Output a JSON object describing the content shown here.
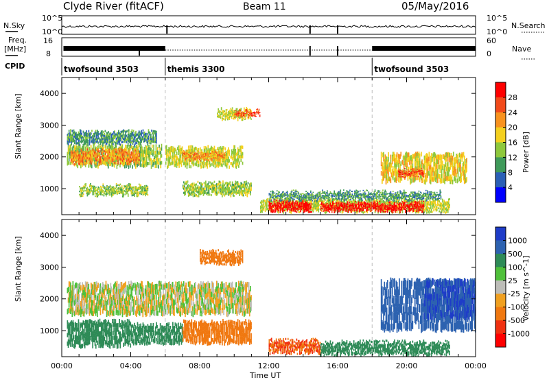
{
  "header": {
    "title": "Clyde River (fitACF)",
    "beam": "Beam 11",
    "date": "05/May/2016"
  },
  "noise_panel": {
    "left_label": "N.Sky",
    "left_ticks": [
      "10^5",
      "10^0"
    ],
    "right_label": "N.Search",
    "right_ticks": [
      "10^5",
      "10^0"
    ]
  },
  "freq_panel": {
    "left_label_1": "Freq.",
    "left_label_2": "[MHz]",
    "left_ticks": [
      "16",
      "8"
    ],
    "right_label": "Nave",
    "right_ticks": [
      "60",
      "0"
    ]
  },
  "cpid": {
    "label": "CPID",
    "segments": [
      {
        "name": "twofsound 3503",
        "start_hour": 0,
        "end_hour": 6
      },
      {
        "name": "themis 3300",
        "start_hour": 6,
        "end_hour": 18
      },
      {
        "name": "twofsound 3503",
        "start_hour": 18,
        "end_hour": 24
      }
    ]
  },
  "axes": {
    "y_label": "Slant Range [km]",
    "y_ticks": [
      "4000",
      "3000",
      "2000",
      "1000"
    ],
    "x_label": "Time UT",
    "x_ticks": [
      "00:00",
      "04:00",
      "08:00",
      "12:00",
      "16:00",
      "20:00",
      "00:00"
    ]
  },
  "power_scale": {
    "label": "Power [dB]",
    "ticks": [
      "28",
      "24",
      "20",
      "16",
      "12",
      "8",
      "4"
    ],
    "colors": [
      "#ff0000",
      "#f24a1a",
      "#f8921e",
      "#f4d01e",
      "#8ec83c",
      "#3f9a5a",
      "#2a5fb6",
      "#0000ff"
    ]
  },
  "velocity_scale": {
    "label": "Velocity [m s^-1]",
    "ticks": [
      "1000",
      "500",
      "100",
      "25",
      "-25",
      "-100",
      "-500",
      "-1000"
    ],
    "colors": [
      "#1e3cc8",
      "#2d62b0",
      "#2e8b57",
      "#4fc03a",
      "#bdbdb8",
      "#f0a020",
      "#f07810",
      "#f03010",
      "#ff0000"
    ]
  },
  "chart_data": {
    "type": "heatmap",
    "x_range_hours": [
      0,
      24
    ],
    "y_range_km": [
      180,
      4500
    ],
    "power_regions": [
      {
        "x0": 0.3,
        "x1": 5.8,
        "y0": 1700,
        "y1": 2350,
        "dB": 12
      },
      {
        "x0": 0.5,
        "x1": 4.5,
        "y0": 1800,
        "y1": 2200,
        "dB": 20
      },
      {
        "x0": 0.3,
        "x1": 5.5,
        "y0": 2400,
        "y1": 2800,
        "dB": 8
      },
      {
        "x0": 1,
        "x1": 5,
        "y0": 800,
        "y1": 1100,
        "dB": 12
      },
      {
        "x0": 6,
        "x1": 10.5,
        "y0": 1700,
        "y1": 2300,
        "dB": 14
      },
      {
        "x0": 7,
        "x1": 9.5,
        "y0": 1900,
        "y1": 2150,
        "dB": 20
      },
      {
        "x0": 7,
        "x1": 11,
        "y0": 800,
        "y1": 1200,
        "dB": 12
      },
      {
        "x0": 9,
        "x1": 11,
        "y0": 3200,
        "y1": 3500,
        "dB": 14
      },
      {
        "x0": 10,
        "x1": 11.5,
        "y0": 3300,
        "y1": 3450,
        "dB": 24
      },
      {
        "x0": 11.5,
        "x1": 22.5,
        "y0": 280,
        "y1": 650,
        "dB": 14
      },
      {
        "x0": 12,
        "x1": 14.5,
        "y0": 300,
        "y1": 600,
        "dB": 28
      },
      {
        "x0": 15,
        "x1": 21,
        "y0": 300,
        "y1": 550,
        "dB": 28
      },
      {
        "x0": 12,
        "x1": 22,
        "y0": 650,
        "y1": 900,
        "dB": 8
      },
      {
        "x0": 18.5,
        "x1": 23.5,
        "y0": 1200,
        "y1": 2100,
        "dB": 16
      },
      {
        "x0": 19.5,
        "x1": 21,
        "y0": 1400,
        "y1": 1600,
        "dB": 24
      }
    ],
    "velocity_regions": [
      {
        "x0": 0.3,
        "x1": 11,
        "y0": 1500,
        "y1": 2500,
        "v": 0
      },
      {
        "x0": 0.3,
        "x1": 4,
        "y0": 500,
        "y1": 1300,
        "v": 300
      },
      {
        "x0": 4,
        "x1": 7,
        "y0": 600,
        "y1": 1200,
        "v": 200
      },
      {
        "x0": 7,
        "x1": 11,
        "y0": 600,
        "y1": 1300,
        "v": -300
      },
      {
        "x0": 8,
        "x1": 10.5,
        "y0": 3100,
        "y1": 3500,
        "v": -300
      },
      {
        "x0": 12,
        "x1": 15,
        "y0": 300,
        "y1": 700,
        "v": -500
      },
      {
        "x0": 15,
        "x1": 22.5,
        "y0": 250,
        "y1": 650,
        "v": 200
      },
      {
        "x0": 18.5,
        "x1": 24,
        "y0": 1000,
        "y1": 2600,
        "v": 700
      },
      {
        "x0": 21,
        "x1": 24,
        "y0": 1400,
        "y1": 2600,
        "v": 1000
      }
    ]
  }
}
